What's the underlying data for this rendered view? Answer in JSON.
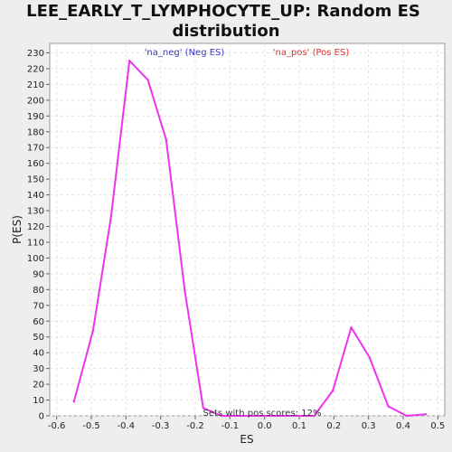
{
  "chart_data": {
    "type": "line",
    "title_line1": "LEE_EARLY_T_LYMPHOCYTE_UP: Random ES",
    "title_line2": "distribution",
    "xlabel": "ES",
    "ylabel": "P(ES)",
    "xlim": [
      -0.62,
      0.52
    ],
    "ylim": [
      0,
      236
    ],
    "xticks": [
      -0.6,
      -0.5,
      -0.4,
      -0.3,
      -0.2,
      -0.1,
      0.0,
      0.1,
      0.2,
      0.3,
      0.4,
      0.5
    ],
    "xtick_labels": [
      "-0.6",
      "-0.5",
      "-0.4",
      "-0.3",
      "-0.2",
      "-0.1",
      "0.0",
      "0.1",
      "0.2",
      "0.3",
      "0.4",
      "0.5"
    ],
    "yticks": [
      0,
      10,
      20,
      30,
      40,
      50,
      60,
      70,
      80,
      90,
      100,
      110,
      120,
      130,
      140,
      150,
      160,
      170,
      180,
      190,
      200,
      210,
      220,
      230
    ],
    "grid": true,
    "legend": {
      "neg_label": "'na_neg' (Neg ES)",
      "neg_color": "#3333cc",
      "pos_label": "'na_pos' (Pos ES)",
      "pos_color": "#e03030"
    },
    "annotation": "Sets with pos scores: 12%",
    "series": [
      {
        "color": "#ee33ee",
        "x": [
          -0.55,
          -0.495,
          -0.443,
          -0.39,
          -0.337,
          -0.284,
          -0.23,
          -0.177,
          -0.124,
          -0.07,
          -0.017,
          0.036,
          0.09,
          0.143,
          0.197,
          0.25,
          0.303,
          0.357,
          0.41,
          0.465
        ],
        "y": [
          9,
          54,
          126,
          225,
          213,
          175,
          79,
          5,
          0,
          0,
          0,
          0,
          0,
          0,
          16,
          56,
          37,
          6,
          0,
          1
        ]
      }
    ]
  }
}
